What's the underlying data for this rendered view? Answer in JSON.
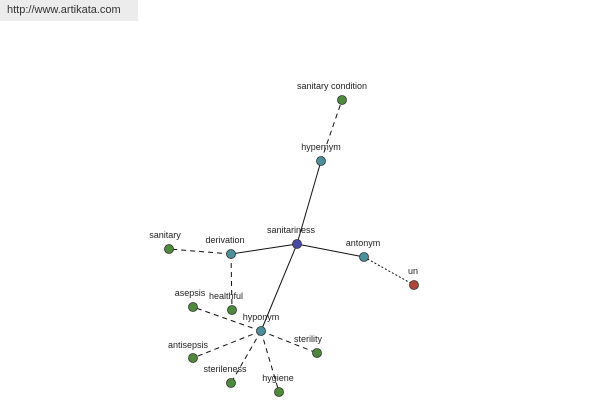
{
  "header": {
    "url": "http://www.artikata.com"
  },
  "nodes": [
    {
      "label": "sanitariness"
    },
    {
      "label": "hypernym"
    },
    {
      "label": "sanitary condition"
    },
    {
      "label": "antonym"
    },
    {
      "label": "un"
    },
    {
      "label": "derivation"
    },
    {
      "label": "sanitary"
    },
    {
      "label": "healthful"
    },
    {
      "label": "hyponym"
    },
    {
      "label": "asepsis"
    },
    {
      "label": "antisepsis"
    },
    {
      "label": "sterileness"
    },
    {
      "label": "hygiene"
    },
    {
      "label": "sterility"
    }
  ]
}
